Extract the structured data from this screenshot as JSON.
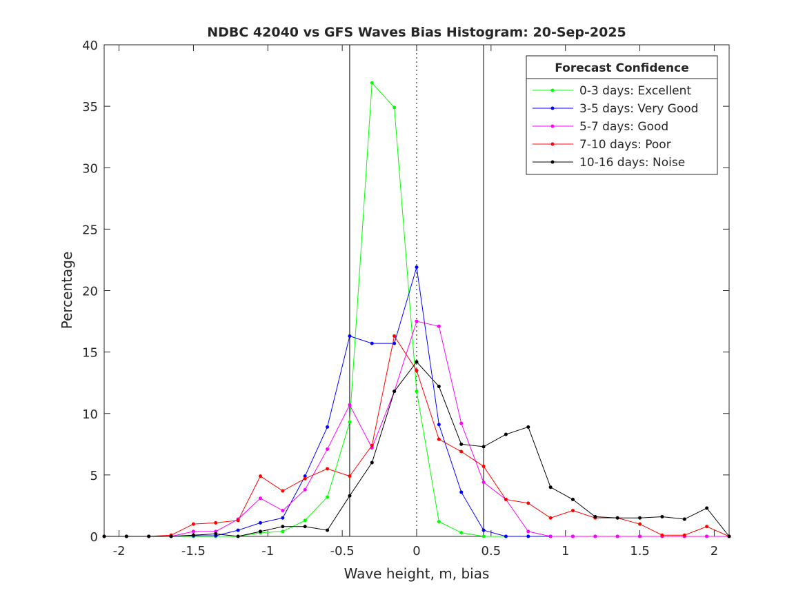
{
  "chart_data": {
    "type": "line",
    "title": "NDBC 42040 vs GFS Waves Bias Histogram: 20-Sep-2025",
    "xlabel": "Wave height, m, bias",
    "ylabel": "Percentage",
    "xlim": [
      -2.1,
      2.1
    ],
    "ylim": [
      0,
      40
    ],
    "xticks": [
      -2,
      -1.5,
      -1,
      -0.5,
      0,
      0.5,
      1,
      1.5,
      2
    ],
    "xtick_labels": [
      "-2",
      "-1.5",
      "-1",
      "-0.5",
      "0",
      "0.5",
      "1",
      "1.5",
      "2"
    ],
    "yticks": [
      0,
      5,
      10,
      15,
      20,
      25,
      30,
      35,
      40
    ],
    "ytick_labels": [
      "0",
      "5",
      "10",
      "15",
      "20",
      "25",
      "30",
      "35",
      "40"
    ],
    "grid": false,
    "reference_lines": [
      {
        "x": -0.45,
        "style": "solid"
      },
      {
        "x": 0,
        "style": "dotted"
      },
      {
        "x": 0.45,
        "style": "solid"
      }
    ],
    "legend": {
      "title": "Forecast Confidence",
      "placement": "top-right"
    },
    "x": [
      -2.1,
      -1.95,
      -1.8,
      -1.65,
      -1.5,
      -1.35,
      -1.2,
      -1.05,
      -0.9,
      -0.75,
      -0.6,
      -0.45,
      -0.3,
      -0.15,
      0,
      0.15,
      0.3,
      0.45,
      0.6,
      0.75,
      0.9,
      1.05,
      1.2,
      1.35,
      1.5,
      1.65,
      1.8,
      1.95,
      2.1
    ],
    "series": [
      {
        "name": "0-3 days: Excellent",
        "color": "#00ff00",
        "values": [
          0,
          0,
          0,
          0,
          0,
          0,
          0,
          0.3,
          0.4,
          1.3,
          3.2,
          9.3,
          36.9,
          34.9,
          11.8,
          1.2,
          0.3,
          0,
          0,
          0,
          0,
          0,
          0,
          0,
          0,
          0,
          0,
          0,
          0
        ]
      },
      {
        "name": "3-5 days: Very Good",
        "color": "#0000ff",
        "values": [
          0,
          0,
          0,
          0,
          0.05,
          0.05,
          0.5,
          1.1,
          1.5,
          4.9,
          8.9,
          16.3,
          15.7,
          15.7,
          21.9,
          9.1,
          3.6,
          0.5,
          0,
          0,
          0,
          0,
          0,
          0,
          0,
          0,
          0,
          0,
          0
        ]
      },
      {
        "name": "5-7 days: Good",
        "color": "#ff00ff",
        "values": [
          0,
          0,
          0,
          0,
          0.4,
          0.4,
          1.4,
          3.1,
          2.1,
          3.8,
          7.1,
          10.7,
          7.2,
          11.8,
          17.5,
          17.1,
          9.2,
          4.4,
          3.0,
          0.4,
          0,
          0,
          0,
          0,
          0,
          0,
          0,
          0,
          0
        ]
      },
      {
        "name": "7-10 days: Poor",
        "color": "#ff0000",
        "values": [
          0,
          0,
          0,
          0.1,
          1.0,
          1.1,
          1.3,
          4.9,
          3.7,
          4.7,
          5.5,
          4.9,
          7.4,
          16.3,
          13.5,
          7.9,
          6.9,
          5.7,
          3.0,
          2.7,
          1.5,
          2.1,
          1.5,
          1.5,
          1.0,
          0.1,
          0.1,
          0.8,
          0
        ]
      },
      {
        "name": "10-16 days: Noise",
        "color": "#000000",
        "values": [
          0,
          0,
          0,
          0,
          0.1,
          0.2,
          0,
          0.4,
          0.8,
          0.8,
          0.5,
          3.3,
          6.0,
          11.8,
          14.2,
          12.2,
          7.5,
          7.3,
          8.3,
          8.9,
          4.0,
          3.0,
          1.6,
          1.5,
          1.5,
          1.6,
          1.4,
          2.3,
          0
        ]
      }
    ]
  }
}
